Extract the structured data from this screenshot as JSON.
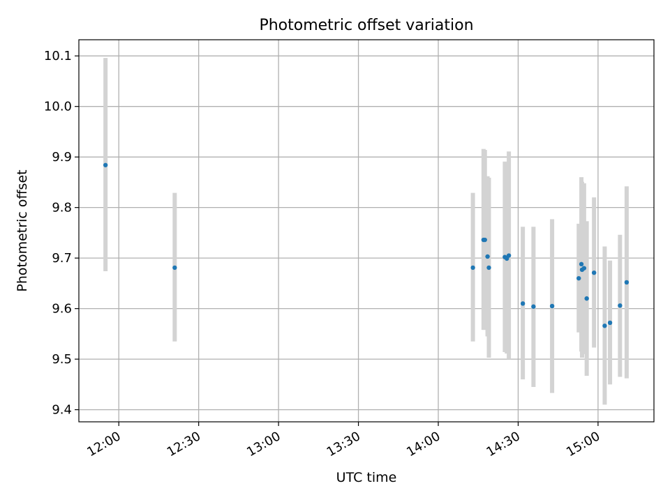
{
  "chart_data": {
    "type": "scatter",
    "title": "Photometric offset variation",
    "xlabel": "UTC time",
    "ylabel": "Photometric offset",
    "x_unit": "UTC time (HH:MM)",
    "xlim": [
      "11:45",
      "15:21"
    ],
    "ylim": [
      9.376,
      10.132
    ],
    "x_ticks": [
      "12:00",
      "12:30",
      "13:00",
      "13:30",
      "14:00",
      "14:30",
      "15:00"
    ],
    "y_ticks": [
      9.4,
      9.5,
      9.6,
      9.7,
      9.8,
      9.9,
      10.0,
      10.1
    ],
    "y_tick_labels": [
      "9.4",
      "9.5",
      "9.6",
      "9.7",
      "9.8",
      "9.9",
      "10.0",
      "10.1"
    ],
    "grid": true,
    "colors": {
      "point": "#1f77b4",
      "errorbar": "#d3d3d3",
      "grid": "#b0b0b0"
    },
    "points": [
      {
        "t": "11:55:00",
        "y": 9.884,
        "err_low": 9.674,
        "err_high": 10.096
      },
      {
        "t": "12:21:00",
        "y": 9.681,
        "err_low": 9.535,
        "err_high": 9.829
      },
      {
        "t": "14:13:00",
        "y": 9.681,
        "err_low": 9.535,
        "err_high": 9.829
      },
      {
        "t": "14:17:00",
        "y": 9.736,
        "err_low": 9.558,
        "err_high": 9.916
      },
      {
        "t": "14:17:30",
        "y": 9.736,
        "err_low": 9.558,
        "err_high": 9.914
      },
      {
        "t": "14:18:30",
        "y": 9.703,
        "err_low": 9.545,
        "err_high": 9.862
      },
      {
        "t": "14:19:00",
        "y": 9.681,
        "err_low": 9.503,
        "err_high": 9.859
      },
      {
        "t": "14:25:00",
        "y": 9.702,
        "err_low": 9.514,
        "err_high": 9.891
      },
      {
        "t": "14:25:45",
        "y": 9.699,
        "err_low": 9.511,
        "err_high": 9.888
      },
      {
        "t": "14:26:30",
        "y": 9.705,
        "err_low": 9.5,
        "err_high": 9.911
      },
      {
        "t": "14:31:45",
        "y": 9.61,
        "err_low": 9.46,
        "err_high": 9.762
      },
      {
        "t": "14:35:45",
        "y": 9.604,
        "err_low": 9.445,
        "err_high": 9.762
      },
      {
        "t": "14:42:45",
        "y": 9.605,
        "err_low": 9.433,
        "err_high": 9.777
      },
      {
        "t": "14:52:45",
        "y": 9.66,
        "err_low": 9.553,
        "err_high": 9.768
      },
      {
        "t": "14:53:45",
        "y": 9.688,
        "err_low": 9.515,
        "err_high": 9.86
      },
      {
        "t": "14:54:00",
        "y": 9.677,
        "err_low": 9.503,
        "err_high": 9.851
      },
      {
        "t": "14:54:45",
        "y": 9.68,
        "err_low": 9.51,
        "err_high": 9.848
      },
      {
        "t": "14:55:45",
        "y": 9.62,
        "err_low": 9.467,
        "err_high": 9.773
      },
      {
        "t": "14:58:30",
        "y": 9.671,
        "err_low": 9.523,
        "err_high": 9.82
      },
      {
        "t": "15:02:30",
        "y": 9.566,
        "err_low": 9.41,
        "err_high": 9.723
      },
      {
        "t": "15:04:30",
        "y": 9.572,
        "err_low": 9.45,
        "err_high": 9.695
      },
      {
        "t": "15:08:15",
        "y": 9.606,
        "err_low": 9.465,
        "err_high": 9.746
      },
      {
        "t": "15:10:45",
        "y": 9.652,
        "err_low": 9.462,
        "err_high": 9.842
      }
    ]
  }
}
